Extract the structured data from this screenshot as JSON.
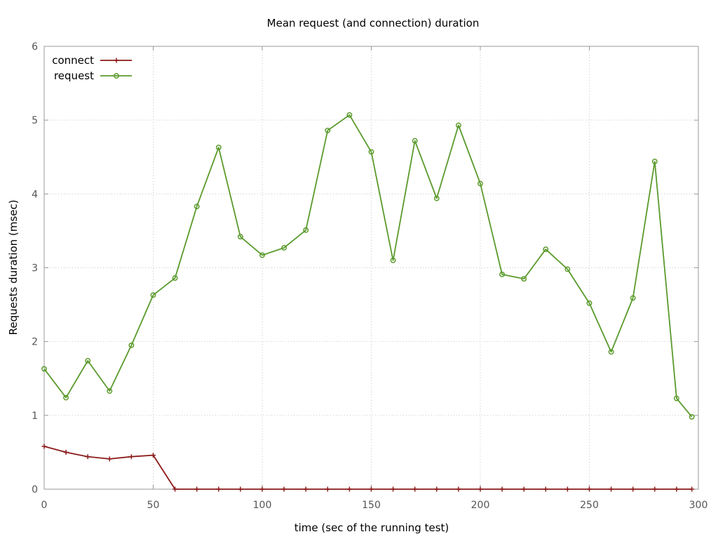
{
  "chart_data": {
    "type": "line",
    "title": "Mean request (and connection) duration",
    "xlabel": "time (sec of the running test)",
    "ylabel": "Requests duration (msec)",
    "xlim": [
      0,
      300
    ],
    "ylim": [
      0,
      6
    ],
    "xticks": [
      0,
      50,
      100,
      150,
      200,
      250,
      300
    ],
    "yticks": [
      0,
      1,
      2,
      3,
      4,
      5,
      6
    ],
    "grid": true,
    "legend_position": "top-left",
    "series": [
      {
        "name": "connect",
        "color": "#8b1a1a",
        "marker": "plus",
        "x": [
          0,
          10,
          20,
          30,
          40,
          50,
          60,
          70,
          80,
          90,
          100,
          110,
          120,
          130,
          140,
          150,
          160,
          170,
          180,
          190,
          200,
          210,
          220,
          230,
          240,
          250,
          260,
          270,
          280,
          290,
          297
        ],
        "y": [
          0.58,
          0.5,
          0.44,
          0.41,
          0.44,
          0.46,
          0,
          0,
          0,
          0,
          0,
          0,
          0,
          0,
          0,
          0,
          0,
          0,
          0,
          0,
          0,
          0,
          0,
          0,
          0,
          0,
          0,
          0,
          0,
          0,
          0
        ]
      },
      {
        "name": "request",
        "color": "#5a9a2c",
        "marker": "circle",
        "x": [
          0,
          10,
          20,
          30,
          40,
          50,
          60,
          70,
          80,
          90,
          100,
          110,
          120,
          130,
          140,
          150,
          160,
          170,
          180,
          190,
          200,
          210,
          220,
          230,
          240,
          250,
          260,
          270,
          280,
          290,
          297
        ],
        "y": [
          1.63,
          1.24,
          1.74,
          1.33,
          1.95,
          2.63,
          2.86,
          3.83,
          4.63,
          3.42,
          3.17,
          3.27,
          3.51,
          4.86,
          5.07,
          4.57,
          3.1,
          4.72,
          3.94,
          4.93,
          4.14,
          2.91,
          2.85,
          3.25,
          2.98,
          2.52,
          1.86,
          2.59,
          4.44,
          1.23,
          0.98
        ]
      }
    ]
  }
}
